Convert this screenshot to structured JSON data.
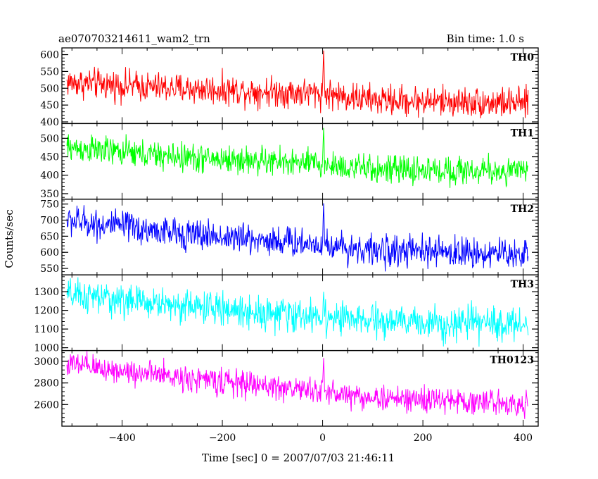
{
  "header": {
    "title": "ae070703214611_wam2_trn",
    "bin_time": "Bin time: 1.0 s"
  },
  "chart_data": {
    "type": "line",
    "xlabel": "Time [sec] 0 = 2007/07/03 21:46:11",
    "ylabel": "Counts/sec",
    "xlim": [
      -520,
      430
    ],
    "x_ticks": [
      -400,
      -200,
      0,
      200,
      400
    ],
    "x_range": [
      -510,
      410
    ],
    "grid": false,
    "panels": [
      {
        "name": "TH0",
        "color": "#ff0000",
        "ylim": [
          395,
          620
        ],
        "y_ticks": [
          400,
          450,
          500,
          550,
          600
        ],
        "trend": [
          [
            -510,
            518
          ],
          [
            -300,
            500
          ],
          [
            0,
            485
          ],
          [
            100,
            465
          ],
          [
            410,
            455
          ]
        ],
        "noise": 28,
        "spike": {
          "x": 2,
          "y": 612
        }
      },
      {
        "name": "TH1",
        "color": "#00ff00",
        "ylim": [
          335,
          540
        ],
        "y_ticks": [
          350,
          400,
          450,
          500
        ],
        "trend": [
          [
            -510,
            475
          ],
          [
            -300,
            450
          ],
          [
            0,
            430
          ],
          [
            100,
            415
          ],
          [
            410,
            410
          ]
        ],
        "noise": 24,
        "spike": {
          "x": 2,
          "y": 528
        }
      },
      {
        "name": "TH2",
        "color": "#0000ff",
        "ylim": [
          530,
          765
        ],
        "y_ticks": [
          550,
          600,
          650,
          700,
          750
        ],
        "trend": [
          [
            -510,
            700
          ],
          [
            -300,
            660
          ],
          [
            0,
            625
          ],
          [
            100,
            605
          ],
          [
            410,
            595
          ]
        ],
        "noise": 30,
        "spike": {
          "x": 2,
          "y": 752
        }
      },
      {
        "name": "TH3",
        "color": "#00ffff",
        "ylim": [
          985,
          1390
        ],
        "y_ticks": [
          1000,
          1100,
          1200,
          1300
        ],
        "trend": [
          [
            -510,
            1280
          ],
          [
            -300,
            1230
          ],
          [
            0,
            1160
          ],
          [
            100,
            1140
          ],
          [
            410,
            1125
          ]
        ],
        "noise": 55,
        "spike": {
          "x": 2,
          "y": 1300
        }
      },
      {
        "name": "TH0123",
        "color": "#ff00ff",
        "ylim": [
          2400,
          3100
        ],
        "y_ticks": [
          2600,
          2800,
          3000
        ],
        "trend": [
          [
            -510,
            2970
          ],
          [
            -300,
            2860
          ],
          [
            0,
            2720
          ],
          [
            100,
            2660
          ],
          [
            410,
            2610
          ]
        ],
        "noise": 75,
        "spike": {
          "x": 2,
          "y": 3030
        }
      }
    ]
  }
}
